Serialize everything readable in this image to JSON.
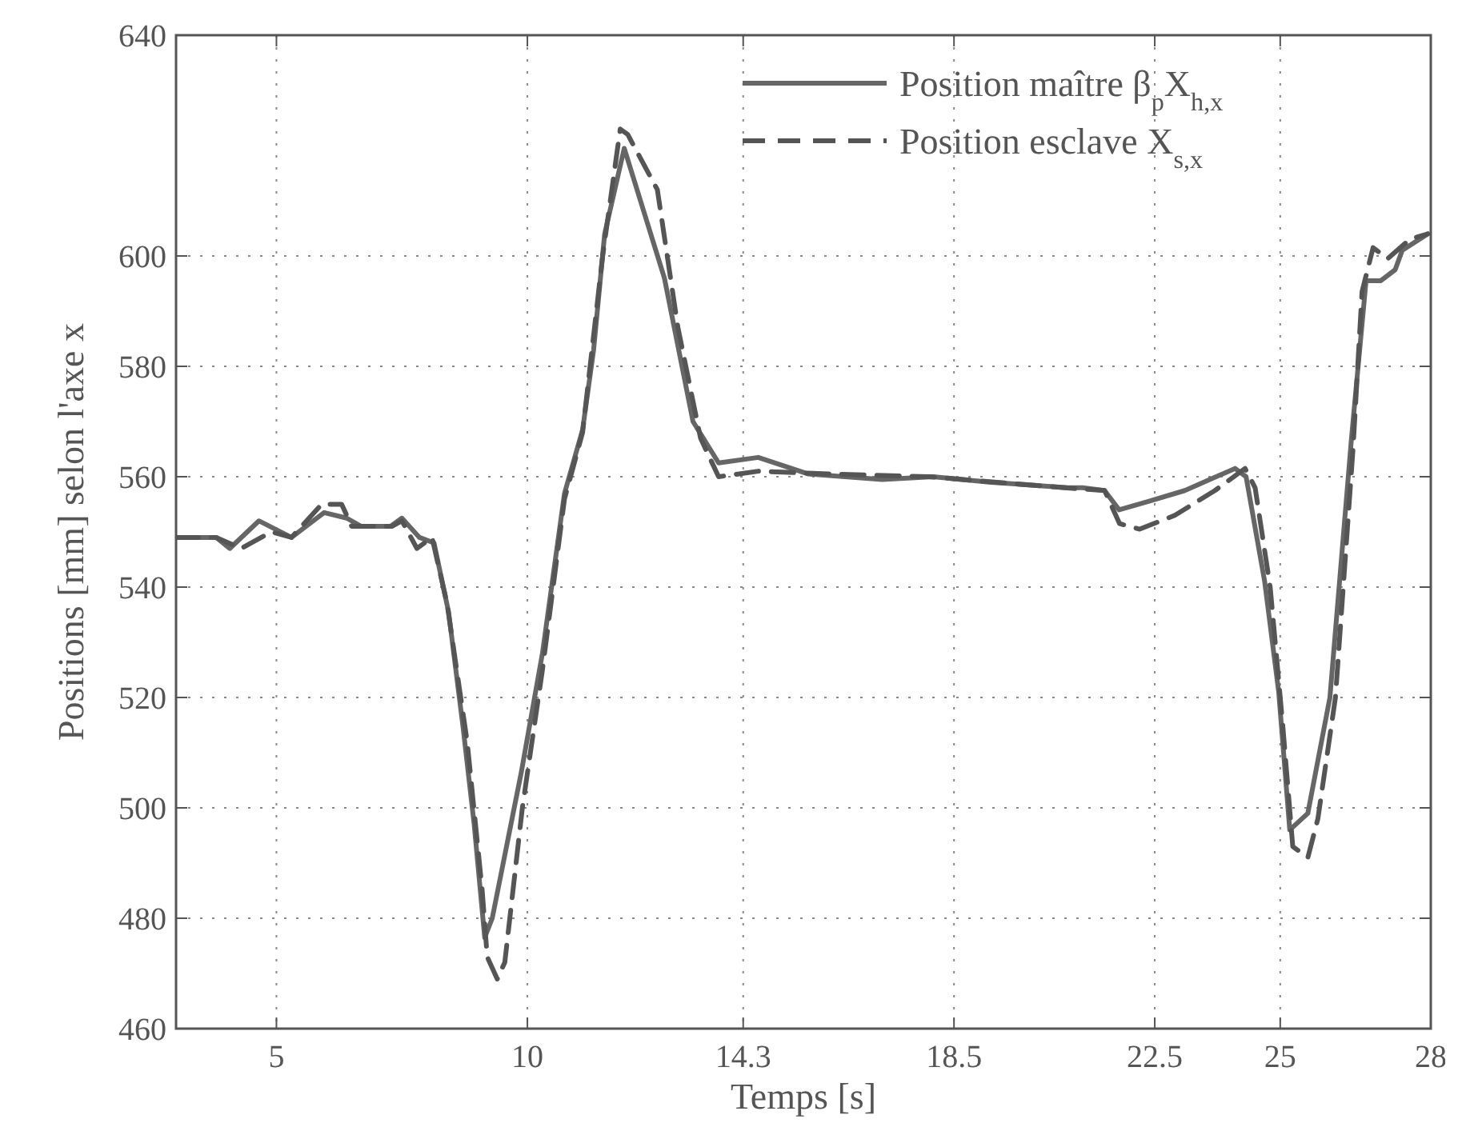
{
  "chart_data": {
    "type": "line",
    "xlabel": "Temps [s]",
    "ylabel": "Positions [mm] selon l'axe x",
    "xlim": [
      3,
      28
    ],
    "xticks": [
      5,
      10,
      14.3,
      18.5,
      22.5,
      25,
      28
    ],
    "ylim": [
      460,
      640
    ],
    "yticks": [
      460,
      480,
      500,
      520,
      540,
      560,
      580,
      600,
      640
    ],
    "grid": true,
    "legend": "top right",
    "series": [
      {
        "name": "Position maître β$_{p}$X$_{h,x}$",
        "color": "#666666",
        "line_style": "solid",
        "x": [
          3,
          3.8,
          4.07,
          4.65,
          5.3,
          5.95,
          6.4,
          6.69,
          7.27,
          7.5,
          7.85,
          8.14,
          8.43,
          8.72,
          8.94,
          9.15,
          9.3,
          9.88,
          10.3,
          10.74,
          11.1,
          11.32,
          11.54,
          11.93,
          12.73,
          13.3,
          13.81,
          14.6,
          15.6,
          17.07,
          18.08,
          19.24,
          20.77,
          21.06,
          21.5,
          21.79,
          22.36,
          23.1,
          24.1,
          24.32,
          24.69,
          24.97,
          25.19,
          25.55,
          25.99,
          26.42,
          26.71,
          27.0,
          27.29,
          27.43,
          27.94
        ],
        "values": [
          549,
          549,
          547,
          552,
          549,
          553.5,
          552.5,
          551,
          551,
          552.5,
          549,
          548,
          535.5,
          514.5,
          497,
          476.5,
          480,
          506.5,
          528,
          557,
          568.5,
          583,
          604,
          619.5,
          596,
          570,
          562.5,
          563.5,
          560.5,
          559.5,
          560,
          559,
          558,
          558,
          557.5,
          554,
          555.5,
          557.5,
          561.5,
          560,
          541,
          521,
          496,
          499,
          520,
          567,
          595.5,
          595.5,
          597.5,
          601,
          604
        ]
      },
      {
        "name": "Position esclave X$_{s,x}$",
        "color": "#555555",
        "line_style": "dashed",
        "x": [
          3,
          3.8,
          4.3,
          4.9,
          5.3,
          5.9,
          6.3,
          6.5,
          7.3,
          7.5,
          7.8,
          8.1,
          8.4,
          8.8,
          9.1,
          9.2,
          9.4,
          9.55,
          9.9,
          10.3,
          10.74,
          11.1,
          11.5,
          11.85,
          12.0,
          12.59,
          13.0,
          13.45,
          13.81,
          14.6,
          16,
          18,
          20.7,
          21.5,
          21.8,
          22.2,
          22.9,
          23.7,
          24.3,
          24.5,
          24.8,
          25.05,
          25.25,
          25.55,
          25.75,
          26.1,
          26.45,
          26.63,
          26.85,
          27.14,
          27.58,
          27.94
        ],
        "values": [
          549,
          549,
          547,
          550,
          549,
          555,
          555,
          551,
          551,
          552,
          547,
          549,
          537,
          512,
          485,
          473,
          469,
          472,
          500,
          525,
          556,
          568,
          600,
          623,
          622,
          612,
          587,
          567,
          560,
          561,
          560.5,
          560,
          558,
          557.5,
          551.5,
          550.5,
          553,
          557.5,
          561.5,
          558,
          540,
          515,
          493,
          491,
          498,
          520,
          565,
          593.5,
          601.5,
          599.5,
          603,
          604
        ]
      }
    ]
  }
}
